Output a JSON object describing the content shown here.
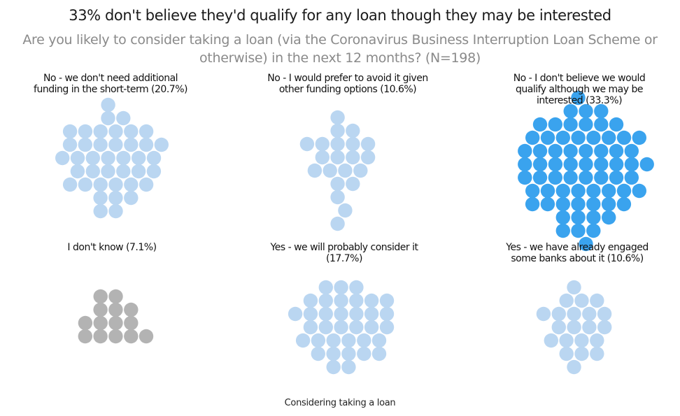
{
  "title": "33% don't believe they'd qualify for any loan though they may be interested",
  "subtitle": "Are you likely to consider taking a loan (via the Coronavirus  Business  Interruption  Loan Scheme or otherwise) in the next 12 months? (N=198)",
  "footer": "Considering taking a loan",
  "colors": {
    "default": "#bad6f1",
    "highlight": "#3aa3ee",
    "unknown": "#b3b3b3"
  },
  "chart_data": {
    "type": "packed-bubble",
    "title": "33% don't believe they'd qualify for any loan though they may be interested",
    "subtitle": "Are you likely to consider taking a loan (via the Coronavirus  Business  Interruption  Loan Scheme or otherwise) in the next 12 months? (N=198)",
    "xlabel": "Considering taking a loan",
    "unit": "one circle per respondent",
    "categories": [
      {
        "label": "No - we don't need additional funding in the short-term (20.7%)",
        "percent": 20.7,
        "count": 41,
        "color": "default"
      },
      {
        "label": "No - I would prefer to avoid it given other funding options (10.6%)",
        "percent": 10.6,
        "count": 21,
        "color": "default"
      },
      {
        "label": "No - I don't believe we would qualify although we may be interested (33.3%)",
        "percent": 33.3,
        "count": 66,
        "color": "highlight"
      },
      {
        "label": "I don't know (7.1%)",
        "percent": 7.1,
        "count": 14,
        "color": "unknown"
      },
      {
        "label": "Yes - we will probably consider it (17.7%)",
        "percent": 17.7,
        "count": 35,
        "color": "default"
      },
      {
        "label": "Yes - we have already engaged some banks about it (10.6%)",
        "percent": 10.6,
        "count": 21,
        "color": "default"
      }
    ]
  }
}
